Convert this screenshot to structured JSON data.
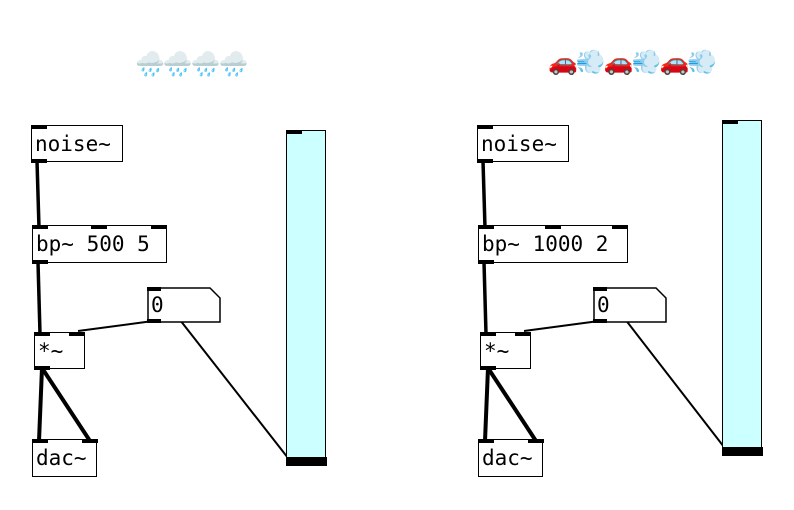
{
  "patch_left": {
    "title_emoji": "🌧️🌧️🌧️🌧️",
    "noise_label": "noise~",
    "bp_label": "bp~ 500 5",
    "number_value": "0",
    "mult_label": "*~",
    "dac_label": "dac~"
  },
  "patch_right": {
    "title_emoji": "🚗💨🚗💨🚗💨",
    "noise_label": "noise~",
    "bp_label": "bp~ 1000 2",
    "number_value": "0",
    "mult_label": "*~",
    "dac_label": "dac~"
  },
  "colors": {
    "slider_fill": "#ccffff",
    "wire": "#000000",
    "background": "#ffffff"
  },
  "icons": {
    "left_title": "rain-cloud-icon",
    "right_title": "car-exhaust-icon"
  }
}
